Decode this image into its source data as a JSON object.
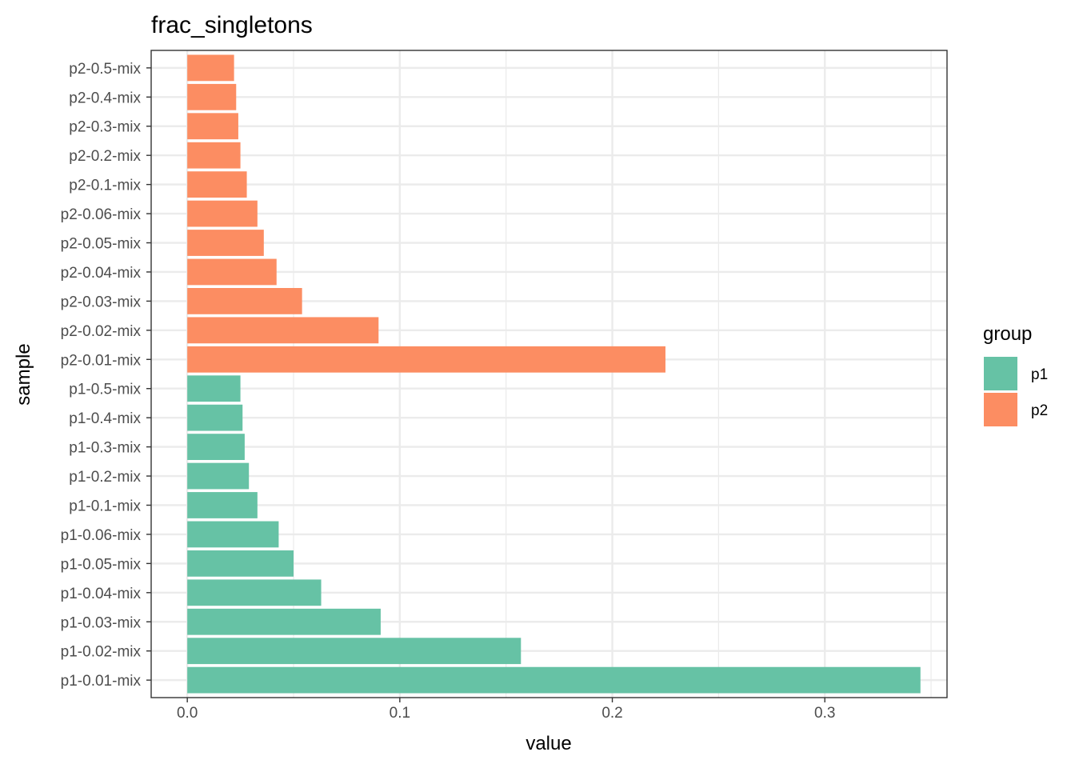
{
  "chart_data": {
    "type": "bar",
    "orientation": "horizontal",
    "title": "frac_singletons",
    "xlabel": "value",
    "ylabel": "sample",
    "xlim": [
      -0.017,
      0.3575
    ],
    "x_ticks": [
      0.0,
      0.1,
      0.2,
      0.3
    ],
    "x_tick_labels": [
      "0.0",
      "0.1",
      "0.2",
      "0.3"
    ],
    "x_minor_ticks": [
      0.05,
      0.15,
      0.25,
      0.35
    ],
    "grid": true,
    "legend": {
      "title": "group",
      "position": "right",
      "entries": [
        {
          "label": "p1",
          "color": "#66c2a5"
        },
        {
          "label": "p2",
          "color": "#fc8d62"
        }
      ]
    },
    "categories": [
      "p1-0.01-mix",
      "p1-0.02-mix",
      "p1-0.03-mix",
      "p1-0.04-mix",
      "p1-0.05-mix",
      "p1-0.06-mix",
      "p1-0.1-mix",
      "p1-0.2-mix",
      "p1-0.3-mix",
      "p1-0.4-mix",
      "p1-0.5-mix",
      "p2-0.01-mix",
      "p2-0.02-mix",
      "p2-0.03-mix",
      "p2-0.04-mix",
      "p2-0.05-mix",
      "p2-0.06-mix",
      "p2-0.1-mix",
      "p2-0.2-mix",
      "p2-0.3-mix",
      "p2-0.4-mix",
      "p2-0.5-mix"
    ],
    "values": [
      0.345,
      0.157,
      0.091,
      0.063,
      0.05,
      0.043,
      0.033,
      0.029,
      0.027,
      0.026,
      0.025,
      0.225,
      0.09,
      0.054,
      0.042,
      0.036,
      0.033,
      0.028,
      0.025,
      0.024,
      0.023,
      0.022
    ],
    "groups": [
      "p1",
      "p1",
      "p1",
      "p1",
      "p1",
      "p1",
      "p1",
      "p1",
      "p1",
      "p1",
      "p1",
      "p2",
      "p2",
      "p2",
      "p2",
      "p2",
      "p2",
      "p2",
      "p2",
      "p2",
      "p2",
      "p2"
    ]
  }
}
